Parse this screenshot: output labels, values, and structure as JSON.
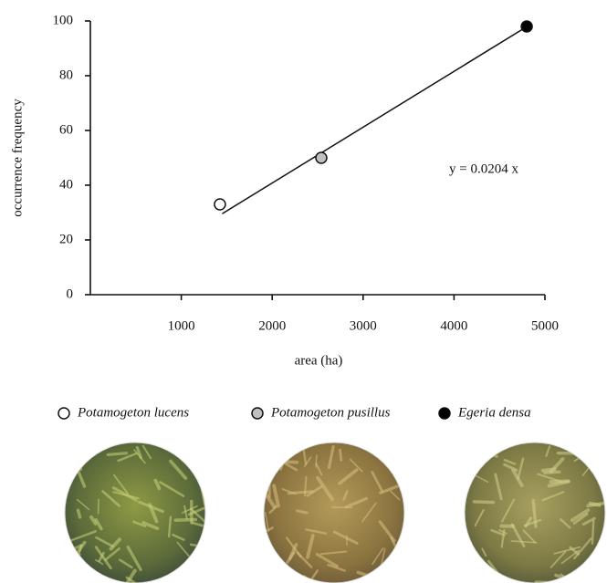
{
  "chart_data": {
    "type": "scatter",
    "xlabel": "area (ha)",
    "ylabel": "occurrence frequency",
    "xlim": [
      0,
      5000
    ],
    "xticks": [
      1000,
      2000,
      3000,
      4000,
      5000
    ],
    "ylim": [
      0,
      100
    ],
    "yticks": [
      0,
      20,
      40,
      60,
      80,
      100
    ],
    "series": [
      {
        "name": "Potamogeton lucens",
        "color": "#ffffff",
        "x": [
          1425
        ],
        "values": [
          33
        ]
      },
      {
        "name": "Potamogeton pusillus",
        "color": "#c0c0c0",
        "x": [
          2540
        ],
        "values": [
          50
        ]
      },
      {
        "name": "Egeria densa",
        "color": "#000000",
        "x": [
          4800
        ],
        "values": [
          98
        ]
      }
    ],
    "fit": {
      "label": "y = 0.0204 x",
      "slope": 0.0204,
      "x": [
        1450,
        4800
      ]
    }
  }
}
